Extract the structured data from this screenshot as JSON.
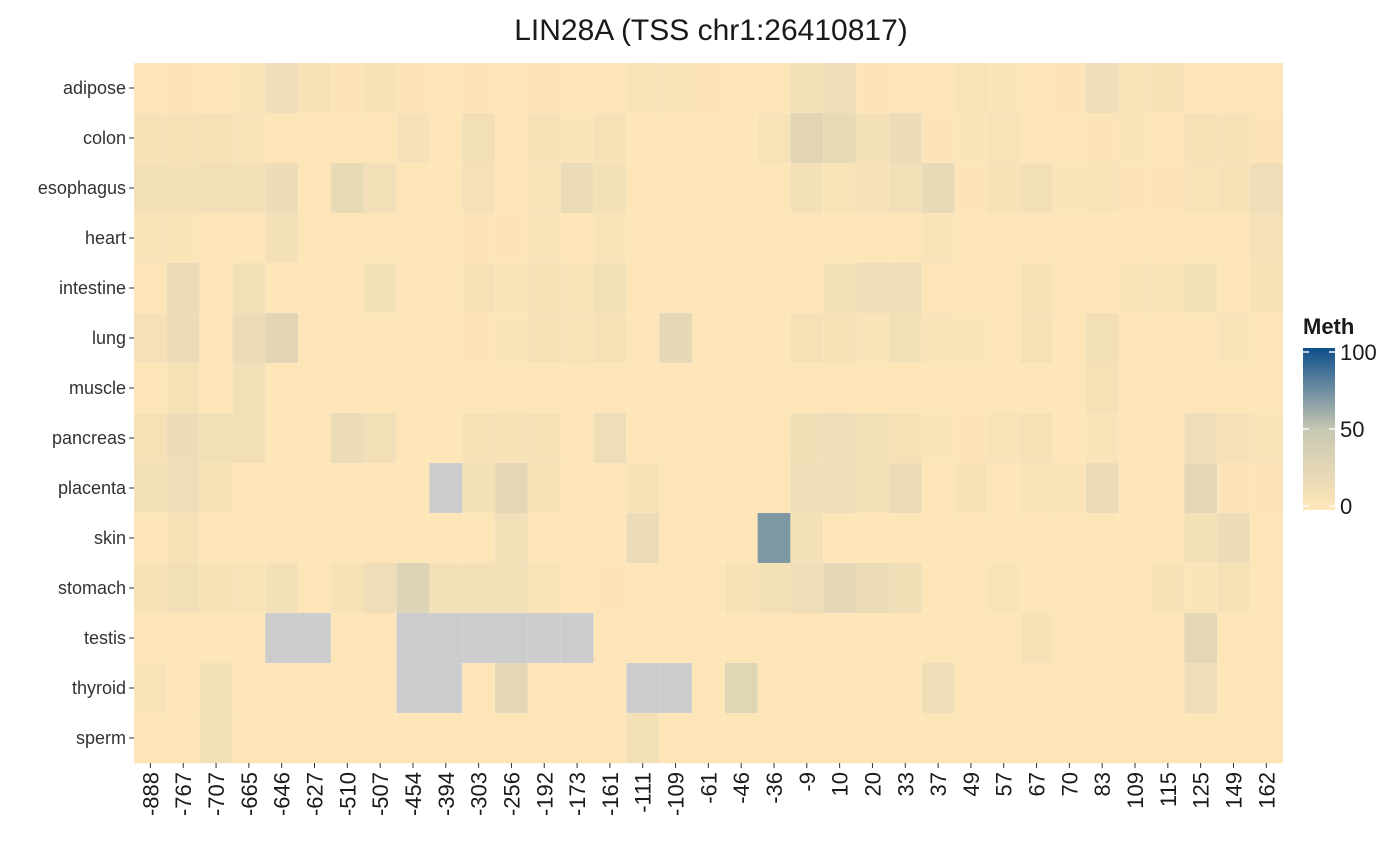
{
  "chart_data": {
    "type": "heatmap",
    "title": "LIN28A (TSS chr1:26410817)",
    "rows": [
      "adipose",
      "colon",
      "esophagus",
      "heart",
      "intestine",
      "lung",
      "muscle",
      "pancreas",
      "placenta",
      "skin",
      "stomach",
      "testis",
      "thyroid",
      "sperm"
    ],
    "columns": [
      "-888",
      "-767",
      "-707",
      "-665",
      "-646",
      "-627",
      "-510",
      "-507",
      "-454",
      "-394",
      "-303",
      "-256",
      "-192",
      "-173",
      "-161",
      "-111",
      "-109",
      "-61",
      "-46",
      "-36",
      "-9",
      "10",
      "20",
      "33",
      "37",
      "49",
      "57",
      "67",
      "70",
      "83",
      "109",
      "115",
      "125",
      "149",
      "162"
    ],
    "values": [
      [
        2,
        3,
        2,
        4,
        14,
        7,
        3,
        8,
        3,
        2,
        3,
        2,
        3,
        2,
        2,
        6,
        5,
        3,
        2,
        2,
        10,
        14,
        3,
        2,
        2,
        6,
        4,
        2,
        3,
        15,
        6,
        8,
        2,
        2,
        2
      ],
      [
        7,
        8,
        8,
        6,
        2,
        2,
        2,
        2,
        9,
        2,
        12,
        2,
        7,
        4,
        7,
        2,
        2,
        2,
        2,
        6,
        27,
        20,
        10,
        16,
        3,
        4,
        6,
        2,
        2,
        3,
        4,
        2,
        8,
        7,
        3
      ],
      [
        10,
        10,
        12,
        10,
        16,
        2,
        20,
        12,
        2,
        2,
        9,
        2,
        6,
        18,
        10,
        2,
        2,
        2,
        2,
        2,
        10,
        5,
        9,
        12,
        20,
        3,
        7,
        10,
        4,
        5,
        3,
        3,
        6,
        7,
        15
      ],
      [
        5,
        4,
        2,
        2,
        10,
        2,
        2,
        2,
        2,
        2,
        3,
        3,
        5,
        2,
        5,
        2,
        2,
        2,
        2,
        2,
        2,
        2,
        2,
        2,
        5,
        2,
        2,
        2,
        2,
        2,
        2,
        2,
        2,
        2,
        9
      ],
      [
        2,
        18,
        2,
        12,
        2,
        2,
        2,
        10,
        2,
        2,
        7,
        4,
        8,
        6,
        11,
        2,
        2,
        2,
        2,
        2,
        2,
        10,
        14,
        14,
        2,
        2,
        2,
        7,
        2,
        2,
        6,
        6,
        10,
        2,
        7
      ],
      [
        9,
        17,
        2,
        17,
        27,
        2,
        2,
        2,
        2,
        2,
        3,
        4,
        8,
        6,
        8,
        2,
        22,
        2,
        2,
        2,
        8,
        7,
        5,
        10,
        5,
        4,
        2,
        8,
        2,
        12,
        2,
        2,
        2,
        5,
        2
      ],
      [
        2,
        8,
        2,
        12,
        2,
        2,
        2,
        2,
        2,
        2,
        2,
        2,
        2,
        2,
        2,
        2,
        2,
        2,
        2,
        2,
        2,
        2,
        2,
        2,
        2,
        2,
        2,
        2,
        2,
        8,
        2,
        2,
        2,
        2,
        2
      ],
      [
        8,
        16,
        11,
        11,
        2,
        2,
        18,
        12,
        2,
        2,
        8,
        7,
        8,
        2,
        15,
        2,
        2,
        2,
        2,
        2,
        13,
        14,
        11,
        8,
        4,
        3,
        6,
        8,
        2,
        5,
        2,
        2,
        14,
        9,
        5
      ],
      [
        10,
        15,
        7,
        2,
        2,
        2,
        2,
        2,
        2,
        null,
        10,
        25,
        7,
        2,
        2,
        7,
        2,
        2,
        2,
        2,
        15,
        15,
        11,
        17,
        2,
        7,
        2,
        5,
        4,
        18,
        2,
        2,
        25,
        3,
        3
      ],
      [
        2,
        7,
        2,
        2,
        2,
        2,
        2,
        2,
        2,
        2,
        2,
        12,
        2,
        2,
        2,
        18,
        2,
        2,
        2,
        70,
        10,
        2,
        2,
        2,
        2,
        2,
        2,
        2,
        2,
        2,
        2,
        2,
        10,
        16,
        2
      ],
      [
        8,
        12,
        7,
        6,
        10,
        2,
        8,
        15,
        30,
        10,
        10,
        12,
        5,
        2,
        3,
        2,
        2,
        2,
        8,
        10,
        15,
        25,
        18,
        13,
        2,
        2,
        5,
        2,
        2,
        2,
        2,
        8,
        4,
        8,
        2
      ],
      [
        2,
        2,
        2,
        2,
        null,
        null,
        2,
        2,
        null,
        null,
        null,
        null,
        null,
        null,
        2,
        2,
        2,
        2,
        2,
        2,
        2,
        2,
        2,
        2,
        2,
        2,
        2,
        7,
        2,
        2,
        2,
        2,
        25,
        2,
        2
      ],
      [
        5,
        2,
        12,
        2,
        2,
        2,
        2,
        2,
        null,
        null,
        2,
        25,
        2,
        2,
        2,
        null,
        null,
        2,
        28,
        2,
        2,
        2,
        2,
        2,
        15,
        2,
        2,
        2,
        2,
        2,
        2,
        2,
        14,
        2,
        2
      ],
      [
        2,
        2,
        10,
        2,
        2,
        2,
        2,
        2,
        2,
        2,
        2,
        2,
        2,
        2,
        2,
        10,
        2,
        2,
        2,
        2,
        2,
        2,
        2,
        2,
        2,
        2,
        2,
        2,
        2,
        2,
        2,
        2,
        2,
        2,
        2
      ]
    ],
    "legend": {
      "title": "Meth",
      "ticks": [
        "100",
        "50",
        "0"
      ],
      "colors": {
        "low": "#FFE6B8",
        "mid": "#C7C7B3",
        "high": "#0E4F8C",
        "na": "#CCCCCC"
      },
      "range": [
        0,
        100
      ]
    }
  }
}
